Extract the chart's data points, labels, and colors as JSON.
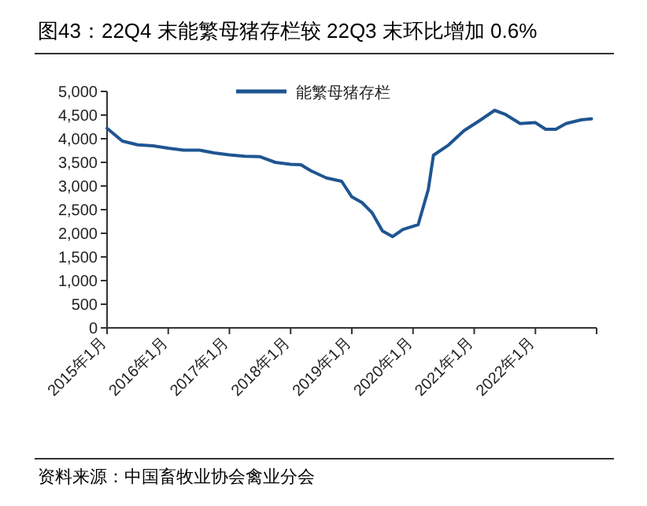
{
  "chart_data": {
    "type": "line",
    "title": "图43：22Q4 末能繁母猪存栏较 22Q3 末环比增加 0.6%",
    "annotations": [
      "资料来源：中国畜牧业协会禽业分会"
    ],
    "x": [
      "2015-01",
      "2015-04",
      "2015-07",
      "2015-10",
      "2016-01",
      "2016-04",
      "2016-07",
      "2016-10",
      "2017-01",
      "2017-04",
      "2017-07",
      "2017-10",
      "2018-01",
      "2018-03",
      "2018-05",
      "2018-08",
      "2018-11",
      "2019-01",
      "2019-03",
      "2019-05",
      "2019-07",
      "2019-09",
      "2019-11",
      "2020-02",
      "2020-04",
      "2020-05",
      "2020-08",
      "2020-11",
      "2021-02",
      "2021-05",
      "2021-07",
      "2021-10",
      "2022-01",
      "2022-03",
      "2022-05",
      "2022-07",
      "2022-10",
      "2022-12"
    ],
    "series": [
      {
        "name": "能繁母猪存栏",
        "color": "#1f5591",
        "values": [
          4220,
          3950,
          3870,
          3850,
          3800,
          3760,
          3760,
          3700,
          3660,
          3630,
          3620,
          3500,
          3460,
          3450,
          3320,
          3170,
          3100,
          2770,
          2650,
          2430,
          2050,
          1930,
          2080,
          2180,
          2930,
          3650,
          3870,
          4170,
          4380,
          4600,
          4520,
          4320,
          4340,
          4200,
          4200,
          4320,
          4400,
          4420
        ]
      }
    ],
    "xlim": [
      "2015-01",
      "2023-01"
    ],
    "xticks": [
      {
        "value": "2015-01",
        "label": "2015年1月"
      },
      {
        "value": "2016-01",
        "label": "2016年1月"
      },
      {
        "value": "2017-01",
        "label": "2017年1月"
      },
      {
        "value": "2018-01",
        "label": "2018年1月"
      },
      {
        "value": "2019-01",
        "label": "2019年1月"
      },
      {
        "value": "2020-01",
        "label": "2020年1月"
      },
      {
        "value": "2021-01",
        "label": "2021年1月"
      },
      {
        "value": "2022-01",
        "label": "2022年1月"
      },
      {
        "value": "2023-01",
        "label": null
      }
    ],
    "ylim": [
      0,
      5000
    ],
    "yticks": [
      0,
      500,
      {
        "value": 1000,
        "label": "1,000"
      },
      {
        "value": 1500,
        "label": "1,500"
      },
      {
        "value": 2000,
        "label": "2,000"
      },
      {
        "value": 2500,
        "label": "2,500"
      },
      {
        "value": 3000,
        "label": "3,000"
      },
      {
        "value": 3500,
        "label": "3,500"
      },
      {
        "value": 4000,
        "label": "4,000"
      },
      {
        "value": 4500,
        "label": "4,500"
      },
      {
        "value": 5000,
        "label": "5,000"
      }
    ],
    "grid": false,
    "legend": "top",
    "marker": "none",
    "line_style": "solid"
  }
}
